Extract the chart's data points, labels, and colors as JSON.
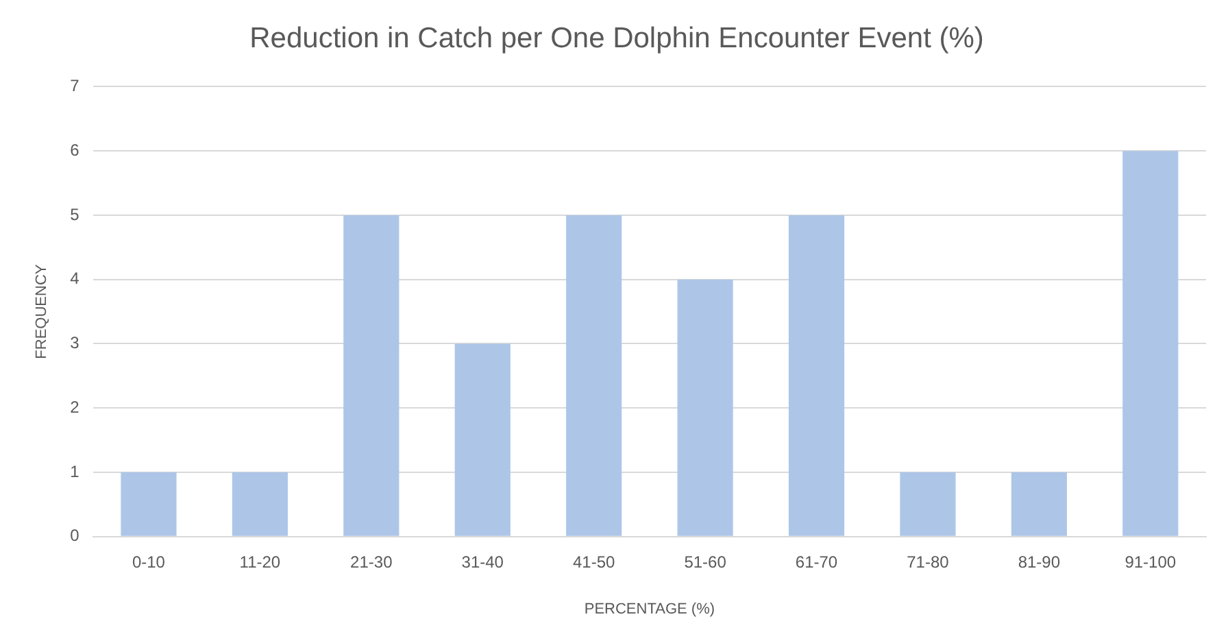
{
  "chart_data": {
    "type": "bar",
    "title": "Reduction in Catch per One Dolphin Encounter Event (%)",
    "xlabel": "PERCENTAGE (%)",
    "ylabel": "FREQUENCY",
    "categories": [
      "0-10",
      "11-20",
      "21-30",
      "31-40",
      "41-50",
      "51-60",
      "61-70",
      "71-80",
      "81-90",
      "91-100"
    ],
    "values": [
      1,
      1,
      5,
      3,
      5,
      4,
      5,
      1,
      1,
      6
    ],
    "color": "#adc6e8",
    "ylim": [
      0,
      7
    ],
    "yticks": [
      0,
      1,
      2,
      3,
      4,
      5,
      6,
      7
    ],
    "grid": "y",
    "legend": false
  }
}
